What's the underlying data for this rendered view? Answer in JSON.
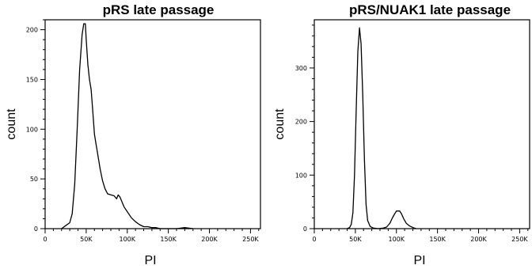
{
  "chart_data": [
    {
      "type": "line",
      "title": "pRS late passage",
      "xlabel": "PI",
      "ylabel": "count",
      "xlim": [
        0,
        262144
      ],
      "ylim": [
        0,
        210
      ],
      "x_ticks": [
        0,
        50000,
        100000,
        150000,
        200000,
        250000
      ],
      "x_tick_labels": [
        "0",
        "50K",
        "100K",
        "150K",
        "200K",
        "250K"
      ],
      "y_ticks": [
        0,
        50,
        100,
        150,
        200
      ],
      "y_tick_labels": [
        "0",
        "50",
        "100",
        "150",
        "200"
      ],
      "grid": false,
      "series": [
        {
          "x": [
            20000,
            25000,
            30000,
            33000,
            36000,
            39000,
            42000,
            45000,
            47000,
            49000,
            50000,
            52000,
            54000,
            56000,
            58000,
            60000,
            62000,
            64000,
            67000,
            70000,
            73000,
            76000,
            80000,
            84000,
            87000,
            89000,
            91000,
            93000,
            96000,
            100000,
            105000,
            110000,
            115000,
            120000,
            125000,
            130000,
            135000,
            140000,
            145000,
            150000,
            160000,
            170000,
            180000
          ],
          "y": [
            0,
            3,
            6,
            15,
            45,
            100,
            160,
            195,
            206,
            206,
            190,
            165,
            150,
            140,
            118,
            95,
            85,
            75,
            60,
            48,
            40,
            35,
            34,
            33,
            30,
            34,
            32,
            28,
            22,
            17,
            11,
            7,
            4,
            2,
            2,
            1,
            1,
            0,
            0,
            0,
            0,
            1,
            0
          ]
        }
      ]
    },
    {
      "type": "line",
      "title": "pRS/NUAK1 late passage",
      "xlabel": "PI",
      "ylabel": "count",
      "xlim": [
        0,
        262144
      ],
      "ylim": [
        0,
        390
      ],
      "x_ticks": [
        0,
        50000,
        100000,
        150000,
        200000,
        250000
      ],
      "x_tick_labels": [
        "0",
        "50K",
        "100K",
        "150K",
        "200K",
        "250K"
      ],
      "y_ticks": [
        0,
        100,
        200,
        300
      ],
      "y_tick_labels": [
        "0",
        "100",
        "200",
        "300"
      ],
      "grid": false,
      "series": [
        {
          "x": [
            40000,
            43000,
            45000,
            47000,
            49000,
            51000,
            53000,
            55000,
            57000,
            59000,
            61000,
            63000,
            65000,
            68000,
            72000,
            78000,
            84000,
            88000,
            92000,
            95000,
            98000,
            100000,
            102000,
            104000,
            106000,
            109000,
            112000,
            116000,
            120000,
            124000
          ],
          "y": [
            0,
            2,
            8,
            30,
            100,
            220,
            330,
            375,
            345,
            250,
            130,
            45,
            15,
            4,
            1,
            0,
            1,
            3,
            10,
            20,
            28,
            33,
            33,
            33,
            28,
            18,
            10,
            5,
            2,
            0
          ]
        }
      ]
    }
  ]
}
